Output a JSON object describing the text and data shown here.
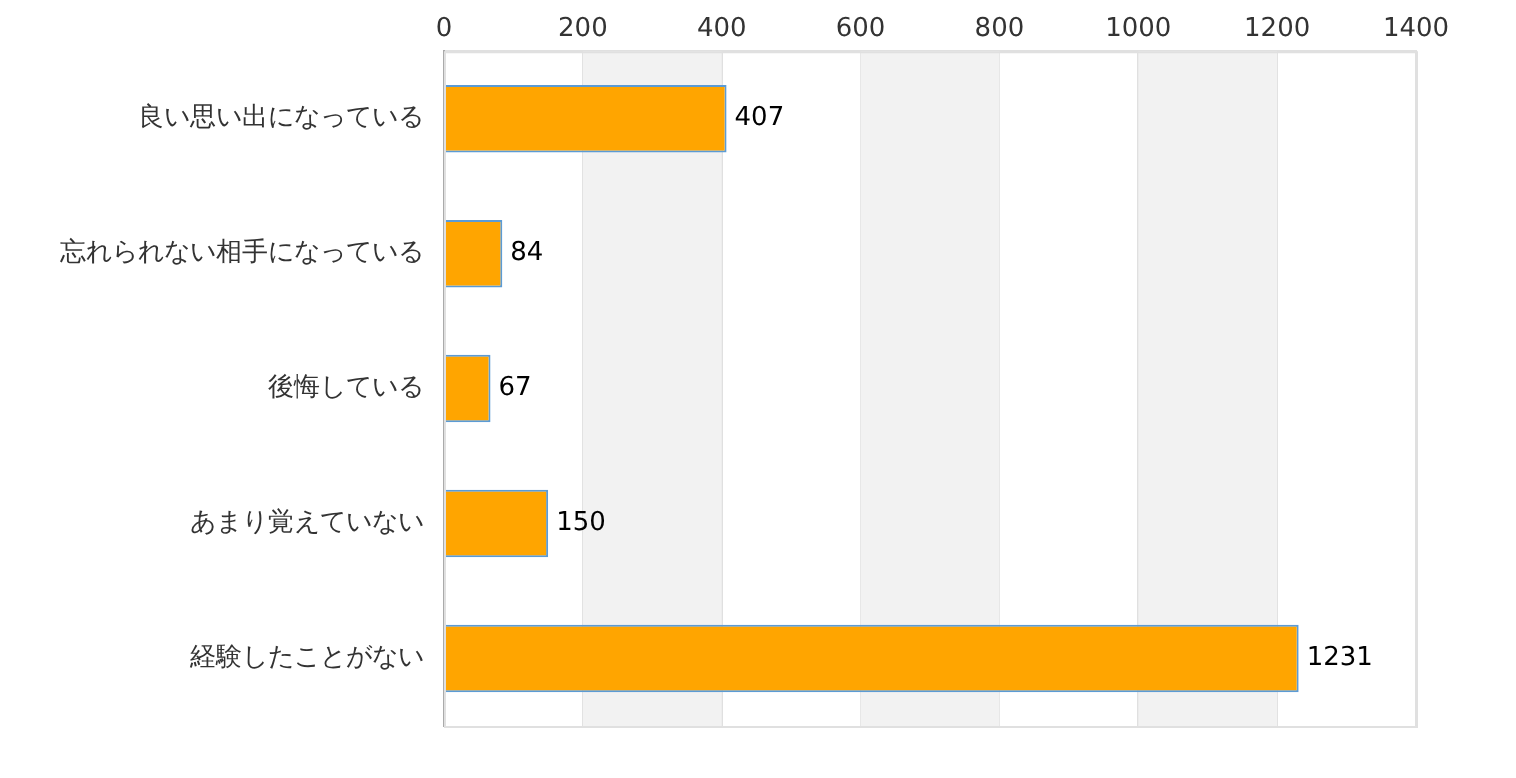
{
  "chart_data": {
    "type": "bar",
    "orientation": "horizontal",
    "categories": [
      "良い思い出になっている",
      "忘れられない相手になっている",
      "後悔している",
      "あまり覚えていない",
      "経験したことがない"
    ],
    "values": [
      407,
      84,
      67,
      150,
      1231
    ],
    "color": "#ffa500",
    "xlim": [
      0,
      1400
    ],
    "xticks": [
      0,
      200,
      400,
      600,
      800,
      1000,
      1200,
      1400
    ],
    "bands": [
      {
        "axis": "x",
        "from": 200,
        "to": 400,
        "color": "#f2f2f2"
      },
      {
        "axis": "x",
        "from": 600,
        "to": 800,
        "color": "#f2f2f2"
      },
      {
        "axis": "x",
        "from": 1000,
        "to": 1200,
        "color": "#f2f2f2"
      }
    ],
    "grid": "x",
    "legend": false,
    "data_labels": true
  }
}
